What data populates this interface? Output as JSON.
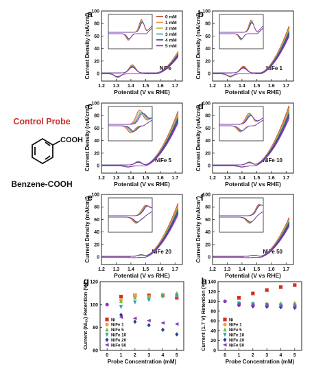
{
  "probe": {
    "title": "Control Probe",
    "name": "Benzene-COOH",
    "group": "COOH"
  },
  "colors": {
    "0 mM": "#c0392b",
    "1 mM": "#e8924a",
    "2 mM": "#b5b52e",
    "3 mM": "#2f9f9f",
    "4 mM": "#2b3f8f",
    "5 mM": "#8b35b0",
    "Ni": "#d62d20",
    "NiFe 1": "#f39c4a",
    "NiFe 5": "#7bb93a",
    "NiFe 10": "#29a3b3",
    "NiFe 20": "#2a3d96",
    "NiFe 50": "#8a3ab9"
  },
  "chart_data": [
    {
      "panel": "a",
      "type": "line",
      "name": "NiFe",
      "xlabel": "Potential (V vs RHE)",
      "ylabel": "Current Density (mA/cm²)",
      "xlim": [
        1.2,
        1.75
      ],
      "ylim": [
        -12,
        100
      ],
      "xticks": [
        "1.2",
        "1.3",
        "1.4",
        "1.5",
        "1.6",
        "1.7"
      ],
      "yticks": [
        "0",
        "20",
        "40",
        "60",
        "80",
        "100"
      ],
      "legend": [
        "0 mM",
        "1 mM",
        "2 mM",
        "3 mM",
        "4 mM",
        "5 mM"
      ],
      "onset": 1.57,
      "jmax": 34,
      "ox_peak": 1.41,
      "ox_h": 13,
      "red_peak": 1.31,
      "red_h": -6,
      "inset": {
        "xlim": [
          1.2,
          1.5
        ],
        "ox": 1.43,
        "red": 1.34,
        "oxh": 0.62,
        "redh": -0.32,
        "spread": 0.05
      }
    },
    {
      "panel": "b",
      "type": "line",
      "name": "NiFe 1",
      "xlabel": "Potential (V vs RHE)",
      "ylabel": "Current Density (mA/cm²)",
      "xlim": [
        1.2,
        1.75
      ],
      "ylim": [
        -12,
        100
      ],
      "xticks": [
        "1.2",
        "1.3",
        "1.4",
        "1.5",
        "1.6",
        "1.7"
      ],
      "yticks": [
        "0",
        "20",
        "40",
        "60",
        "80",
        "100"
      ],
      "onset": 1.52,
      "jmax": 75,
      "ox_peak": 1.41,
      "ox_h": 11,
      "red_peak": 1.32,
      "red_h": -5,
      "inset": {
        "xlim": [
          1.2,
          1.5
        ],
        "ox": 1.42,
        "red": 1.35,
        "oxh": 0.6,
        "redh": -0.3,
        "spread": 0.04
      }
    },
    {
      "panel": "c",
      "type": "line",
      "name": "NiFe 5",
      "xlabel": "Potential (V vs RHE)",
      "ylabel": "Current Density (mA/cm²)",
      "xlim": [
        1.2,
        1.75
      ],
      "ylim": [
        -12,
        100
      ],
      "xticks": [
        "1.2",
        "1.3",
        "1.4",
        "1.5",
        "1.6",
        "1.7"
      ],
      "yticks": [
        "0",
        "20",
        "40",
        "60",
        "80",
        "100"
      ],
      "onset": 1.49,
      "jmax": 86,
      "ox_peak": 1.45,
      "ox_h": 6,
      "red_peak": 1.38,
      "red_h": -2,
      "inset": {
        "xlim": [
          1.3,
          1.5
        ],
        "ox": 1.45,
        "red": 1.41,
        "oxh": 0.7,
        "redh": -0.35,
        "spread": 0.12
      }
    },
    {
      "panel": "d",
      "type": "line",
      "name": "NiFe 10",
      "xlabel": "Potential (V vs RHE)",
      "ylabel": "Current Density (mA/cm²)",
      "xlim": [
        1.2,
        1.75
      ],
      "ylim": [
        -12,
        100
      ],
      "xticks": [
        "1.2",
        "1.3",
        "1.4",
        "1.5",
        "1.6",
        "1.7"
      ],
      "yticks": [
        "0",
        "20",
        "40",
        "60",
        "80",
        "100"
      ],
      "onset": 1.48,
      "jmax": 95,
      "ox_peak": 1.45,
      "ox_h": 5,
      "red_peak": 1.4,
      "red_h": -2,
      "inset": {
        "xlim": [
          1.3,
          1.5
        ],
        "ox": 1.44,
        "red": 1.4,
        "oxh": 0.55,
        "redh": -0.3,
        "spread": 0.06
      }
    },
    {
      "panel": "e",
      "type": "line",
      "name": "NiFe 20",
      "xlabel": "Potential (V vs RHE)",
      "ylabel": "Current Density (mA/cm²)",
      "xlim": [
        1.2,
        1.75
      ],
      "ylim": [
        -12,
        100
      ],
      "xticks": [
        "1.2",
        "1.3",
        "1.4",
        "1.5",
        "1.6",
        "1.7"
      ],
      "yticks": [
        "0",
        "20",
        "40",
        "60",
        "80",
        "100"
      ],
      "onset": 1.49,
      "jmax": 85,
      "ox_peak": 1.47,
      "ox_h": 3,
      "red_peak": 1.42,
      "red_h": -1,
      "inset": {
        "xlim": [
          1.3,
          1.5
        ],
        "ox": 1.47,
        "red": 1.43,
        "oxh": 0.45,
        "redh": -0.3,
        "spread": 0.05
      }
    },
    {
      "panel": "f",
      "type": "line",
      "name": "NiFe 50",
      "xlabel": "Potential (V vs RHE)",
      "ylabel": "Current Density (mA/cm²)",
      "xlim": [
        1.2,
        1.75
      ],
      "ylim": [
        -12,
        100
      ],
      "xticks": [
        "1.2",
        "1.3",
        "1.4",
        "1.5",
        "1.6",
        "1.7"
      ],
      "yticks": [
        "0",
        "20",
        "40",
        "60",
        "80",
        "100"
      ],
      "onset": 1.52,
      "jmax": 62,
      "ox_peak": 1.48,
      "ox_h": 2,
      "red_peak": 1.44,
      "red_h": -1,
      "inset": {
        "xlim": [
          1.3,
          1.5
        ],
        "ox": 1.48,
        "red": 1.44,
        "oxh": 0.4,
        "redh": -0.3,
        "spread": 0.04
      }
    },
    {
      "panel": "g",
      "type": "scatter",
      "xlabel": "Probe Concentration (mM)",
      "ylabel": "Current (Niₒₓ) Retention (%)",
      "xlim": [
        -0.5,
        5.5
      ],
      "ylim": [
        60,
        120
      ],
      "xticks": [
        "0",
        "1",
        "2",
        "3",
        "4",
        "5"
      ],
      "yticks": [
        "60",
        "80",
        "100",
        "120"
      ],
      "x": [
        0,
        1,
        2,
        3,
        4,
        5
      ],
      "series": [
        {
          "name": "Ni",
          "marker": "square",
          "values": [
            100,
            107,
            108,
            108,
            108,
            106
          ]
        },
        {
          "name": "NiFe 1",
          "marker": "circle",
          "values": [
            100,
            104,
            108,
            107,
            108,
            108
          ]
        },
        {
          "name": "NiFe 5",
          "marker": "triangle-up",
          "values": [
            100,
            103,
            106,
            107,
            109,
            110
          ]
        },
        {
          "name": "NiFe 10",
          "marker": "triangle-down",
          "values": [
            100,
            98,
            102,
            104,
            107,
            108
          ]
        },
        {
          "name": "NiFe 20",
          "marker": "diamond",
          "values": [
            100,
            91,
            85,
            82,
            78,
            74
          ]
        },
        {
          "name": "NiFe 50",
          "marker": "triangle-left",
          "values": [
            100,
            89,
            88,
            86,
            84,
            83
          ]
        }
      ]
    },
    {
      "panel": "h",
      "type": "scatter",
      "xlabel": "Probe Concentration (mM)",
      "ylabel": "Current (1.7 V) Retention (%)",
      "xlim": [
        -0.5,
        5.5
      ],
      "ylim": [
        0,
        140
      ],
      "xticks": [
        "0",
        "1",
        "2",
        "3",
        "4",
        "5"
      ],
      "yticks": [
        "0",
        "20",
        "40",
        "60",
        "80",
        "100",
        "120",
        "140"
      ],
      "x": [
        0,
        1,
        2,
        3,
        4,
        5
      ],
      "series": [
        {
          "name": "Ni",
          "marker": "square",
          "values": [
            100,
            107,
            116,
            123,
            129,
            133
          ]
        },
        {
          "name": "NiFe 1",
          "marker": "circle",
          "values": [
            100,
            97,
            95,
            94,
            93,
            93
          ]
        },
        {
          "name": "NiFe 5",
          "marker": "triangle-up",
          "values": [
            100,
            97,
            96,
            96,
            96,
            97
          ]
        },
        {
          "name": "NiFe 10",
          "marker": "triangle-down",
          "values": [
            100,
            95,
            94,
            93,
            92,
            92
          ]
        },
        {
          "name": "NiFe 20",
          "marker": "diamond",
          "values": [
            100,
            92,
            90,
            89,
            88,
            87
          ]
        },
        {
          "name": "NiFe 50",
          "marker": "triangle-left",
          "values": [
            100,
            94,
            92,
            91,
            90,
            89
          ]
        }
      ]
    }
  ]
}
